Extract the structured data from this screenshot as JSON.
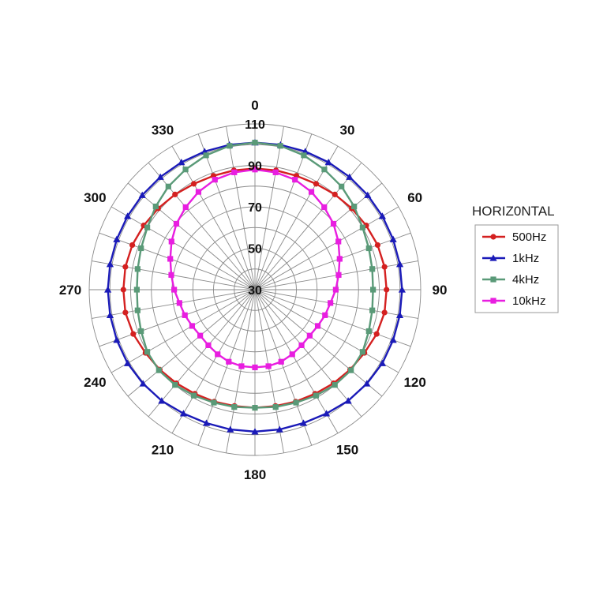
{
  "chart_data": {
    "type": "polar-line",
    "legend_title": "HORIZ0NTAL",
    "legend_position": "right",
    "radial_range": [
      30,
      110
    ],
    "radial_tick_labels": [
      "30",
      "50",
      "70",
      "90",
      "110"
    ],
    "radial_gridlines": [
      30,
      40,
      50,
      60,
      70,
      80,
      90,
      100,
      110
    ],
    "angle_direction": "clockwise",
    "angle_zero": "top",
    "angle_tick_labels": [
      "0",
      "30",
      "60",
      "90",
      "120",
      "150",
      "180",
      "210",
      "240",
      "270",
      "300",
      "330"
    ],
    "angles": [
      0,
      10,
      20,
      30,
      40,
      50,
      60,
      70,
      80,
      90,
      100,
      110,
      120,
      130,
      140,
      150,
      160,
      170,
      180,
      190,
      200,
      210,
      220,
      230,
      240,
      250,
      260,
      270,
      280,
      290,
      300,
      310,
      320,
      330,
      340,
      350
    ],
    "series": [
      {
        "name": "500Hz",
        "color": "#d42020",
        "marker": "circle",
        "values": [
          88.5,
          88.5,
          88.5,
          89,
          90,
          91,
          92,
          93,
          93.5,
          93.5,
          93.5,
          92.5,
          91,
          90,
          89,
          88,
          87.5,
          87,
          87,
          87,
          87.5,
          88,
          89,
          90,
          91,
          92.5,
          93.5,
          93.5,
          93.5,
          93,
          92,
          91,
          90,
          89,
          88.5,
          88.5
        ]
      },
      {
        "name": "1kHz",
        "color": "#1a1ab8",
        "marker": "triangle",
        "values": [
          101,
          101,
          101,
          101,
          101,
          101,
          101,
          101,
          101,
          101,
          101,
          101,
          101,
          100.5,
          100,
          99,
          98.5,
          98.5,
          98.5,
          98.5,
          98.5,
          99,
          100,
          100.5,
          101,
          101,
          101,
          101,
          101,
          101,
          101,
          101,
          101,
          101,
          101,
          101
        ]
      },
      {
        "name": "4kHz",
        "color": "#5a9a78",
        "marker": "square",
        "values": [
          101,
          100.5,
          99,
          97,
          95,
          92.5,
          90,
          88.5,
          87.5,
          87,
          87.5,
          88.5,
          90,
          90.5,
          90,
          89,
          88,
          87.5,
          87,
          87.5,
          88,
          89,
          90,
          90.5,
          90,
          88.5,
          87.5,
          87,
          87.5,
          88.5,
          90,
          92.5,
          95,
          97,
          99,
          100.5
        ]
      },
      {
        "name": "10kHz",
        "color": "#e81ee0",
        "marker": "square",
        "values": [
          88,
          87.5,
          86.5,
          84.5,
          82,
          79.5,
          76.5,
          73.5,
          71,
          69,
          67,
          66,
          65,
          64.5,
          65,
          66,
          67,
          67.5,
          67.5,
          67.5,
          67,
          66,
          65,
          64.5,
          65,
          66,
          67,
          69,
          71,
          73.5,
          76.5,
          79.5,
          82,
          84.5,
          86.5,
          87.5
        ]
      }
    ]
  }
}
